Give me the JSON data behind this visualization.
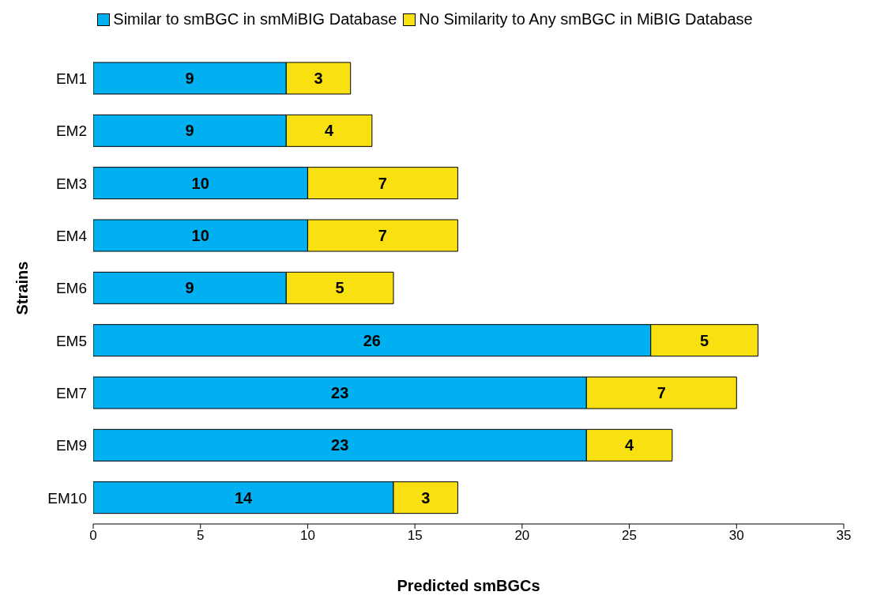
{
  "chart_data": {
    "type": "bar",
    "orientation": "horizontal",
    "stacked": true,
    "xlabel": "Predicted smBGCs",
    "ylabel": "Strains",
    "categories": [
      "EM1",
      "EM2",
      "EM3",
      "EM4",
      "EM6",
      "EM5",
      "EM7",
      "EM9",
      "EM10"
    ],
    "series": [
      {
        "name": "Similar to smBGC in smMiBIG Database",
        "color": "#00b0f0",
        "values": [
          9,
          9,
          10,
          10,
          9,
          26,
          23,
          23,
          14
        ]
      },
      {
        "name": "No Similarity to Any smBGC in MiBIG Database",
        "color": "#f9e011",
        "values": [
          3,
          4,
          7,
          7,
          5,
          5,
          7,
          4,
          3
        ]
      }
    ],
    "xlim": [
      0,
      35
    ],
    "xticks": [
      0,
      5,
      10,
      15,
      20,
      25,
      30,
      35
    ],
    "grid": false,
    "legend": "top",
    "data_labels": true
  }
}
